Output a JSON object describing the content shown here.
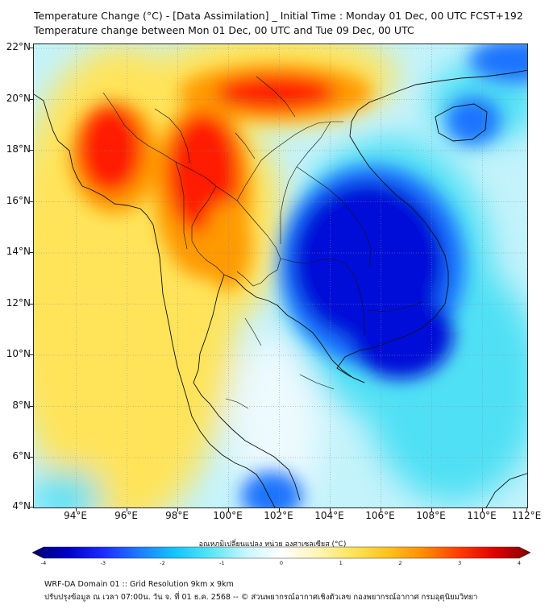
{
  "header": {
    "title_line1": "Temperature Change (°C) - [Data Assimilation] _ Initial Time : Monday 01 Dec, 00 UTC FCST+192",
    "title_line2": "Temperature change between Mon 01 Dec, 00 UTC and Tue 09 Dec, 00 UTC"
  },
  "map": {
    "lat_labels": [
      "22°N",
      "20°N",
      "18°N",
      "16°N",
      "14°N",
      "12°N",
      "10°N",
      "8°N",
      "6°N",
      "4°N"
    ],
    "lon_labels": [
      "94°E",
      "96°E",
      "98°E",
      "100°E",
      "102°E",
      "104°E",
      "106°E",
      "108°E",
      "110°E",
      "112°E"
    ],
    "colors": {
      "strong_warm": "#ff1a00",
      "warm": "#ff9a00",
      "mild_warm": "#ffe45a",
      "neutral": "#f2fbff",
      "mild_cool": "#4fe0f5",
      "cool": "#1a75ff",
      "strong_cool": "#0010d8"
    }
  },
  "colorbar": {
    "title": "อุณหภูมิเปลี่ยนแปลง หน่วย องศาเซลเซียส (°C)",
    "tick_labels": [
      "-4",
      "-3",
      "-2",
      "-1",
      "0",
      "1",
      "2",
      "3",
      "4"
    ],
    "stops": [
      "#00006e",
      "#0000c8",
      "#1c2cff",
      "#1c7cff",
      "#12c4ff",
      "#56e6f5",
      "#c8f6ff",
      "#ffffff",
      "#fff6b8",
      "#ffe45a",
      "#ffc21e",
      "#ff8c00",
      "#ff3c00",
      "#e00000",
      "#800000"
    ]
  },
  "footer": {
    "line1": "WRF-DA Domain 01 :: Grid Resolution 9km x 9km",
    "line2": "ปรับปรุงข้อมูล ณ เวลา 07:00น. วัน จ. ที่ 01 ธ.ค. 2568 -- © ส่วนพยากรณ์อากาศเชิงตัวเลข กองพยากรณ์อากาศ กรมอุตุนิยมวิทยา"
  }
}
